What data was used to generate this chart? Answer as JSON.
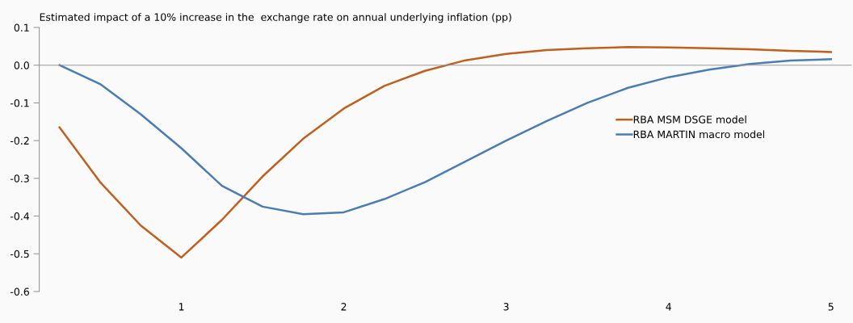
{
  "chart_data": {
    "type": "line",
    "title": "Estimated impact of a 10% increase in the  exchange rate on annual underlying inflation (pp)",
    "categories": [
      null,
      null,
      null,
      "1",
      null,
      null,
      null,
      "2",
      null,
      null,
      null,
      "3",
      null,
      null,
      null,
      "4",
      null,
      null,
      null,
      "5"
    ],
    "series": [
      {
        "name": "RBA MSM DSGE model",
        "color": "#c0601f",
        "values": [
          -0.165,
          -0.31,
          -0.425,
          -0.51,
          -0.41,
          -0.295,
          -0.195,
          -0.115,
          -0.055,
          -0.015,
          0.013,
          0.03,
          0.04,
          0.045,
          0.048,
          0.047,
          0.045,
          0.042,
          0.038,
          0.035
        ]
      },
      {
        "name": "RBA MARTIN macro model",
        "color": "#4a7db3",
        "values": [
          0.0,
          -0.05,
          -0.13,
          -0.22,
          -0.32,
          -0.375,
          -0.395,
          -0.39,
          -0.355,
          -0.31,
          -0.255,
          -0.2,
          -0.148,
          -0.1,
          -0.06,
          -0.032,
          -0.012,
          0.003,
          0.012,
          0.016
        ]
      }
    ],
    "ylim": [
      -0.6,
      0.1
    ],
    "yticks": [
      {
        "value": 0.1,
        "label": "0.1"
      },
      {
        "value": 0.0,
        "label": "0.0"
      },
      {
        "value": -0.1,
        "label": "-0.1"
      },
      {
        "value": -0.2,
        "label": "-0.2"
      },
      {
        "value": -0.3,
        "label": "-0.3"
      },
      {
        "value": -0.4,
        "label": "-0.4"
      },
      {
        "value": -0.5,
        "label": "-0.5"
      },
      {
        "value": -0.6,
        "label": "-0.6"
      }
    ],
    "legend": "right"
  }
}
